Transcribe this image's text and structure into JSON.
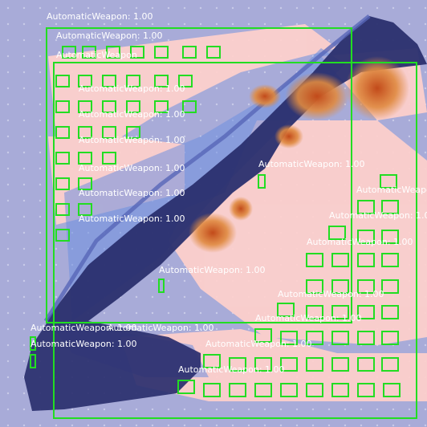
{
  "image": {
    "subject": "folding-knife-heatmap-overlay",
    "overlay_color": "#22dd22",
    "label_color": "#ffffff",
    "heat_colors": [
      "#2a2f8f",
      "#4a7fd0",
      "#e8a060",
      "#ff9a8a",
      "#c24a1a"
    ]
  },
  "detections": {
    "label": "AutomaticWeapon: 1.00",
    "label_short": "AutomaticWeapon"
  }
}
